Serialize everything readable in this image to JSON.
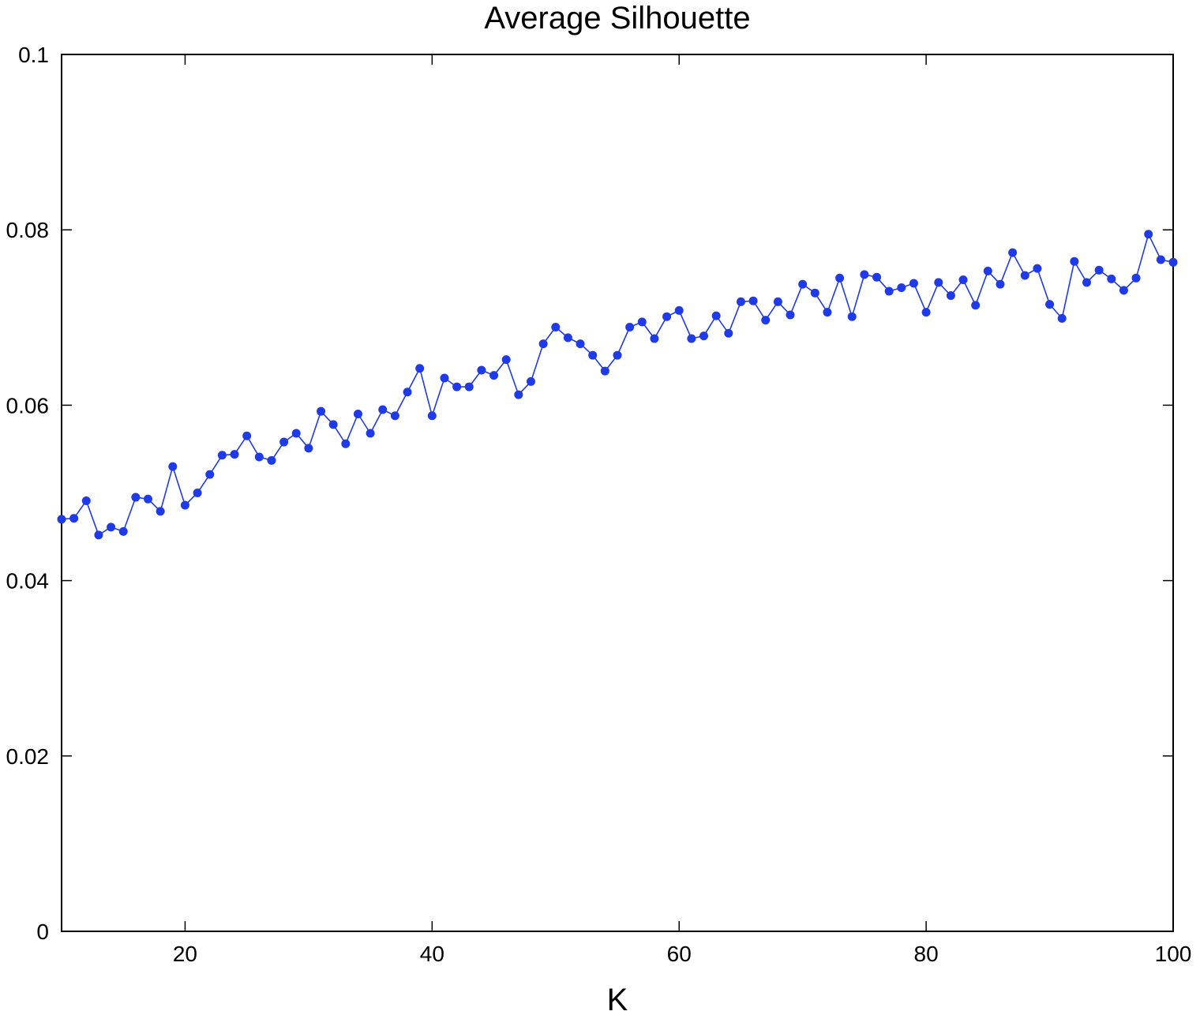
{
  "chart_data": {
    "type": "line",
    "title": "Average Silhouette",
    "xlabel": "K",
    "ylabel": "",
    "xlim": [
      10,
      100
    ],
    "ylim": [
      0,
      0.1
    ],
    "xticks": [
      20,
      40,
      60,
      80,
      100
    ],
    "xtick_labels": [
      "20",
      "40",
      "60",
      "80",
      "100"
    ],
    "yticks": [
      0,
      0.02,
      0.04,
      0.06,
      0.08,
      0.1
    ],
    "ytick_labels": [
      "0",
      "0.02",
      "0.04",
      "0.06",
      "0.08",
      "0.1"
    ],
    "grid": false,
    "legend": "none",
    "series": [
      {
        "color": "#1f3ae8",
        "marker": "circle",
        "x": [
          10,
          11,
          12,
          13,
          14,
          15,
          16,
          17,
          18,
          19,
          20,
          21,
          22,
          23,
          24,
          25,
          26,
          27,
          28,
          29,
          30,
          31,
          32,
          33,
          34,
          35,
          36,
          37,
          38,
          39,
          40,
          41,
          42,
          43,
          44,
          45,
          46,
          47,
          48,
          49,
          50,
          51,
          52,
          53,
          54,
          55,
          56,
          57,
          58,
          59,
          60,
          61,
          62,
          63,
          64,
          65,
          66,
          67,
          68,
          69,
          70,
          71,
          72,
          73,
          74,
          75,
          76,
          77,
          78,
          79,
          80,
          81,
          82,
          83,
          84,
          85,
          86,
          87,
          88,
          89,
          90,
          91,
          92,
          93,
          94,
          95,
          96,
          97,
          98,
          99,
          100
        ],
        "y": [
          0.047,
          0.0471,
          0.0491,
          0.0452,
          0.0461,
          0.0456,
          0.0495,
          0.0493,
          0.0479,
          0.053,
          0.0486,
          0.05,
          0.0521,
          0.0543,
          0.0544,
          0.0565,
          0.0541,
          0.0537,
          0.0558,
          0.0568,
          0.0551,
          0.0593,
          0.0578,
          0.0556,
          0.059,
          0.0568,
          0.0595,
          0.0588,
          0.0615,
          0.0642,
          0.0588,
          0.0631,
          0.0621,
          0.0621,
          0.064,
          0.0634,
          0.0652,
          0.0612,
          0.0627,
          0.067,
          0.0689,
          0.0677,
          0.067,
          0.0657,
          0.0639,
          0.0657,
          0.0689,
          0.0695,
          0.0676,
          0.0701,
          0.0708,
          0.0676,
          0.0679,
          0.0702,
          0.0682,
          0.0718,
          0.0719,
          0.0697,
          0.0718,
          0.0703,
          0.0738,
          0.0728,
          0.0706,
          0.0745,
          0.0701,
          0.0749,
          0.0746,
          0.073,
          0.0734,
          0.0739,
          0.0706,
          0.074,
          0.0725,
          0.0743,
          0.0714,
          0.0753,
          0.0738,
          0.0774,
          0.0748,
          0.0756,
          0.0715,
          0.0699,
          0.0764,
          0.074,
          0.0754,
          0.0744,
          0.0731,
          0.0745,
          0.0795,
          0.0766,
          0.0763
        ]
      }
    ]
  }
}
